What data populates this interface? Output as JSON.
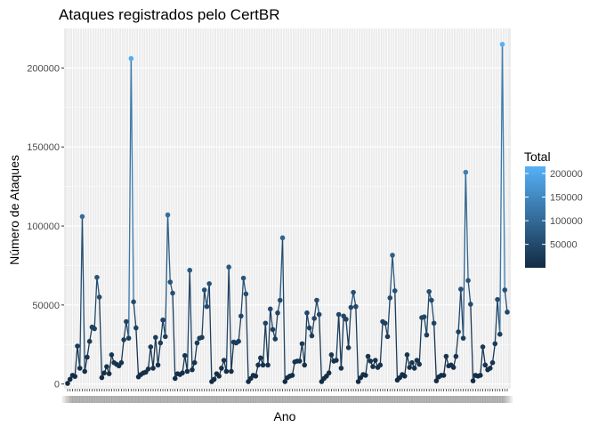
{
  "chart_data": {
    "type": "line",
    "title": "Ataques registrados pelo CertBR",
    "xlabel": "Ano",
    "ylabel": "Número de Ataques",
    "x_tick_labels_overlapping": true,
    "ylim": [
      -3000,
      225000
    ],
    "yticks": [
      0,
      50000,
      100000,
      150000,
      200000
    ],
    "ytick_labels": [
      "0",
      "50000",
      "100000",
      "150000",
      "200000"
    ],
    "grid": true,
    "legend": {
      "title": "Total",
      "position": "right",
      "range": [
        400,
        215000
      ],
      "ticks": [
        50000,
        100000,
        150000,
        200000
      ],
      "tick_labels": [
        "50000",
        "100000",
        "150000",
        "200000"
      ],
      "color_low": "#132B43",
      "color_high": "#56B1F7"
    },
    "series": [
      {
        "values": [
          400,
          3000,
          5500,
          4800,
          24000,
          10000,
          106000,
          8000,
          17000,
          27000,
          36000,
          35000,
          67500,
          55000,
          4000,
          7000,
          11000,
          6500,
          18500,
          13500,
          12500,
          11500,
          13500,
          28000,
          39500,
          29000,
          206000,
          52000,
          35500,
          4500,
          6000,
          7000,
          7500,
          9500,
          23500,
          10000,
          29500,
          12000,
          26000,
          40500,
          30000,
          107000,
          64500,
          57500,
          3500,
          6500,
          6000,
          7000,
          18000,
          8000,
          72000,
          9000,
          13500,
          26000,
          29000,
          29500,
          59500,
          49000,
          63500,
          1500,
          3000,
          6500,
          5000,
          10000,
          15000,
          8000,
          74000,
          8000,
          26500,
          26000,
          27000,
          43000,
          67000,
          57000,
          1500,
          3500,
          5500,
          5000,
          12000,
          16500,
          12000,
          38500,
          12000,
          47500,
          34500,
          28500,
          45000,
          53000,
          92500,
          1500,
          4000,
          5000,
          5500,
          14000,
          14500,
          14500,
          25500,
          12000,
          45000,
          35500,
          30500,
          41500,
          53000,
          44000,
          1500,
          3500,
          5000,
          7000,
          18500,
          14500,
          15000,
          44000,
          10000,
          43000,
          41000,
          23000,
          48500,
          58000,
          49000,
          1500,
          4000,
          6000,
          5500,
          17500,
          14500,
          11000,
          15000,
          10500,
          12000,
          39500,
          38500,
          30000,
          54500,
          81500,
          59000,
          2500,
          4000,
          6000,
          5000,
          18500,
          10500,
          13500,
          10000,
          15000,
          12500,
          42000,
          42500,
          31000,
          58500,
          53000,
          38500,
          2000,
          4500,
          5500,
          5500,
          17500,
          11500,
          12000,
          10500,
          17500,
          33000,
          60000,
          29000,
          134000,
          65500,
          50500,
          2000,
          5500,
          5000,
          5500,
          23500,
          12000,
          9000,
          10000,
          13500,
          25500,
          53500,
          31500,
          215000,
          59500,
          45500
        ]
      }
    ]
  }
}
